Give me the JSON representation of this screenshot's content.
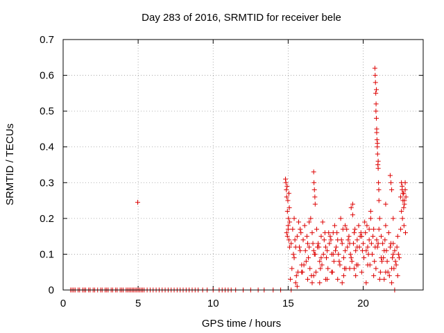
{
  "chart_data": {
    "type": "scatter",
    "title": "Day 283 of 2016, SRMTID for receiver bele",
    "xlabel": "GPS time / hours",
    "ylabel": "SRMTID / TECUs",
    "xlim": [
      0,
      24
    ],
    "ylim": [
      0,
      0.7
    ],
    "xticks": [
      0,
      5,
      10,
      15,
      20
    ],
    "xtick_labels": [
      "0",
      "5",
      "10",
      "15",
      "20"
    ],
    "yticks": [
      0,
      0.1,
      0.2,
      0.3,
      0.4,
      0.5,
      0.6,
      0.7
    ],
    "ytick_labels": [
      "0",
      "0.1",
      "0.2",
      "0.3",
      "0.4",
      "0.5",
      "0.6",
      "0.7"
    ],
    "grid": true,
    "marker": "+",
    "color": "#dd0000",
    "series": [
      {
        "name": "SRMTID",
        "x": [
          0.5,
          0.6,
          0.7,
          0.8,
          1.0,
          1.1,
          1.3,
          1.4,
          1.5,
          1.7,
          1.8,
          2.0,
          2.1,
          2.3,
          2.5,
          2.6,
          2.8,
          2.9,
          3.0,
          3.2,
          3.3,
          3.5,
          3.6,
          3.8,
          3.9,
          4.0,
          4.2,
          4.3,
          4.4,
          4.5,
          4.6,
          4.7,
          4.8,
          4.9,
          5.0,
          5.1,
          5.2,
          5.3,
          5.4,
          5.6,
          5.8,
          6.0,
          6.2,
          6.4,
          6.6,
          6.8,
          7.0,
          7.2,
          7.4,
          7.6,
          7.8,
          8.0,
          8.2,
          8.4,
          8.6,
          8.8,
          9.0,
          9.3,
          9.6,
          10.0,
          10.4,
          10.6,
          10.8,
          11.0,
          11.2,
          11.5,
          12.0,
          12.5,
          13.0,
          13.4,
          14.0,
          14.5,
          15.2,
          22.1,
          4.97,
          14.82,
          14.85,
          14.88,
          14.9,
          14.93,
          14.95,
          14.98,
          15.0,
          15.02,
          15.05,
          15.08,
          15.1,
          14.9,
          14.95,
          15.0,
          15.05,
          15.1,
          15.2,
          15.4,
          15.6,
          15.8,
          16.0,
          16.2,
          16.4,
          16.6,
          16.8,
          17.0,
          17.2,
          17.4,
          17.6,
          17.8,
          18.0,
          18.2,
          18.4,
          18.6,
          18.8,
          19.0,
          19.2,
          19.4,
          19.6,
          19.8,
          20.0,
          20.2,
          20.4,
          20.6,
          20.8,
          21.0,
          21.2,
          21.4,
          21.6,
          21.8,
          22.0,
          22.2,
          22.4,
          15.3,
          15.5,
          15.7,
          15.9,
          16.1,
          16.3,
          16.5,
          16.7,
          16.9,
          17.1,
          17.3,
          17.5,
          17.7,
          17.9,
          18.1,
          18.3,
          18.5,
          18.7,
          18.9,
          19.1,
          19.3,
          19.5,
          19.7,
          19.9,
          20.1,
          20.3,
          20.5,
          20.7,
          20.9,
          21.1,
          21.3,
          21.5,
          21.7,
          21.9,
          22.1,
          22.3,
          15.25,
          15.45,
          15.65,
          15.85,
          16.05,
          16.25,
          16.45,
          16.65,
          16.85,
          17.05,
          17.25,
          17.45,
          17.65,
          17.85,
          18.05,
          18.25,
          18.45,
          18.65,
          18.85,
          19.05,
          19.25,
          19.45,
          19.65,
          19.85,
          20.05,
          20.25,
          20.45,
          20.65,
          20.85,
          21.05,
          21.25,
          21.45,
          21.65,
          21.85,
          22.05,
          22.25,
          15.35,
          15.55,
          15.75,
          15.95,
          16.15,
          16.35,
          16.55,
          16.75,
          16.95,
          17.15,
          17.35,
          17.55,
          17.75,
          17.95,
          18.15,
          18.35,
          18.55,
          18.75,
          18.95,
          19.15,
          19.35,
          19.55,
          19.75,
          19.95,
          20.15,
          20.35,
          20.55,
          20.75,
          20.95,
          21.15,
          21.35,
          21.55,
          21.75,
          21.95,
          22.15,
          22.35,
          15.15,
          15.5,
          15.9,
          16.3,
          16.7,
          17.1,
          17.5,
          17.9,
          18.3,
          18.7,
          19.1,
          19.5,
          19.9,
          20.3,
          20.7,
          21.1,
          21.5,
          21.9,
          22.3,
          16.7,
          16.72,
          16.75,
          16.78,
          16.8,
          19.2,
          19.3,
          20.5,
          21.5,
          21.8,
          21.85,
          21.9,
          22.0,
          20.78,
          20.8,
          20.82,
          20.84,
          20.86,
          20.88,
          20.9,
          20.92,
          20.94,
          20.96,
          20.98,
          21.0,
          21.02,
          21.04,
          20.85,
          20.9,
          20.95,
          21.0,
          21.05,
          20.88,
          22.5,
          22.55,
          22.6,
          22.65,
          22.7,
          22.75,
          22.8,
          22.85,
          22.55,
          22.65,
          22.75,
          22.6,
          22.7,
          22.8,
          22.5,
          22.62,
          22.72,
          22.82,
          15.4,
          15.8,
          16.4,
          17.2,
          18.0,
          18.8,
          19.6,
          20.4,
          21.2,
          22.0,
          15.6,
          16.6,
          17.6,
          18.6,
          19.4,
          20.2,
          21.4
        ],
        "y": [
          0,
          0,
          0,
          0,
          0,
          0,
          0,
          0,
          0,
          0,
          0,
          0,
          0,
          0,
          0,
          0,
          0,
          0,
          0,
          0,
          0,
          0,
          0,
          0,
          0,
          0,
          0,
          0,
          0,
          0,
          0,
          0,
          0,
          0,
          0,
          0,
          0,
          0,
          0,
          0,
          0,
          0,
          0,
          0,
          0,
          0,
          0,
          0,
          0,
          0,
          0,
          0,
          0,
          0,
          0,
          0,
          0,
          0,
          0,
          0,
          0,
          0,
          0,
          0,
          0,
          0,
          0,
          0,
          0,
          0,
          0,
          0,
          0,
          0,
          0.245,
          0.31,
          0.3,
          0.28,
          0.26,
          0.29,
          0.22,
          0.25,
          0.18,
          0.2,
          0.27,
          0.23,
          0.19,
          0.16,
          0.15,
          0.17,
          0.14,
          0.12,
          0.13,
          0.09,
          0.15,
          0.11,
          0.14,
          0.08,
          0.12,
          0.16,
          0.1,
          0.13,
          0.09,
          0.14,
          0.11,
          0.15,
          0.1,
          0.12,
          0.08,
          0.13,
          0.11,
          0.14,
          0.09,
          0.16,
          0.12,
          0.15,
          0.13,
          0.11,
          0.14,
          0.1,
          0.12,
          0.13,
          0.09,
          0.11,
          0.08,
          0.12,
          0.1,
          0.07,
          0.09,
          0.17,
          0.12,
          0.19,
          0.07,
          0.18,
          0.13,
          0.2,
          0.11,
          0.17,
          0.08,
          0.19,
          0.12,
          0.16,
          0.1,
          0.18,
          0.14,
          0.2,
          0.09,
          0.17,
          0.13,
          0.21,
          0.11,
          0.18,
          0.15,
          0.19,
          0.12,
          0.22,
          0.17,
          0.14,
          0.2,
          0.13,
          0.18,
          0.16,
          0.06,
          0.11,
          0.15,
          0.06,
          0.14,
          0.05,
          0.16,
          0.07,
          0.15,
          0.06,
          0.13,
          0.05,
          0.12,
          0.07,
          0.16,
          0.06,
          0.14,
          0.08,
          0.16,
          0.07,
          0.17,
          0.06,
          0.15,
          0.08,
          0.17,
          0.07,
          0.16,
          0.09,
          0.18,
          0.07,
          0.15,
          0.06,
          0.17,
          0.08,
          0.14,
          0.05,
          0.13,
          0.06,
          0.12,
          0.1,
          0.04,
          0.12,
          0.05,
          0.11,
          0.09,
          0.04,
          0.1,
          0.12,
          0.06,
          0.1,
          0.09,
          0.13,
          0.05,
          0.11,
          0.1,
          0.14,
          0.06,
          0.12,
          0.1,
          0.13,
          0.07,
          0.12,
          0.11,
          0.16,
          0.1,
          0.13,
          0.08,
          0.12,
          0.05,
          0.09,
          0.11,
          0.04,
          0.09,
          0.08,
          0.1,
          0.03,
          0.02,
          0.05,
          0.03,
          0.04,
          0.02,
          0.03,
          0.05,
          0.03,
          0.04,
          0.06,
          0.04,
          0.05,
          0.07,
          0.04,
          0.03,
          0.05,
          0.02,
          0.04,
          0.33,
          0.3,
          0.28,
          0.26,
          0.24,
          0.23,
          0.24,
          0.2,
          0.24,
          0.32,
          0.3,
          0.28,
          0.2,
          0.62,
          0.6,
          0.58,
          0.55,
          0.52,
          0.48,
          0.45,
          0.42,
          0.4,
          0.38,
          0.35,
          0.34,
          0.3,
          0.28,
          0.5,
          0.44,
          0.41,
          0.36,
          0.25,
          0.56,
          0.26,
          0.3,
          0.28,
          0.25,
          0.27,
          0.24,
          0.3,
          0.26,
          0.22,
          0.27,
          0.25,
          0.29,
          0.23,
          0.28,
          0.17,
          0.2,
          0.18,
          0.16,
          0.2,
          0.17,
          0.19,
          0.15,
          0.16,
          0.18,
          0.14,
          0.17,
          0.15,
          0.13,
          0.01,
          0.02,
          0.03,
          0.02,
          0.06,
          0.02,
          0.03
        ]
      }
    ]
  }
}
